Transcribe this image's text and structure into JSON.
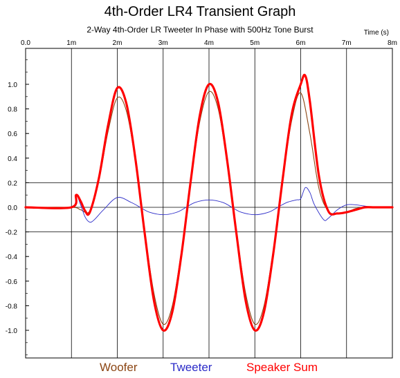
{
  "chart_data": {
    "type": "line",
    "title": "4th-Order LR4 Transient Graph",
    "subtitle": "2-Way 4th-Order LR Tweeter In Phase with 500Hz Tone Burst",
    "xlabel": "Time  (s)",
    "ylabel": "",
    "x_ticks": [
      "0.0",
      "1m",
      "2m",
      "3m",
      "4m",
      "5m",
      "6m",
      "7m",
      "8m"
    ],
    "y_ticks": [
      "1.0",
      "0.8",
      "0.6",
      "0.4",
      "0.2",
      "0.0",
      "-0.2",
      "-0.4",
      "-0.6",
      "-0.8",
      "-1.0"
    ],
    "xlim": [
      0,
      0.008
    ],
    "ylim": [
      -1.24,
      1.24
    ],
    "grid": true,
    "legend_position": "bottom",
    "series": [
      {
        "name": "Woofer",
        "color": "#8B4513",
        "x": [
          0,
          0.001,
          0.0012,
          0.0014,
          0.0016,
          0.0018,
          0.002,
          0.0022,
          0.0024,
          0.0026,
          0.0028,
          0.003,
          0.0032,
          0.0034,
          0.0036,
          0.0038,
          0.004,
          0.0042,
          0.0044,
          0.0046,
          0.0048,
          0.005,
          0.0052,
          0.0054,
          0.0056,
          0.0058,
          0.006,
          0.0062,
          0.0064,
          0.0066,
          0.0068,
          0.007,
          0.0072,
          0.0074,
          0.0076,
          0.0078,
          0.008
        ],
        "values": [
          0,
          0,
          -0.02,
          -0.03,
          0.22,
          0.62,
          0.89,
          0.78,
          0.36,
          -0.2,
          -0.7,
          -0.95,
          -0.8,
          -0.35,
          0.2,
          0.7,
          0.94,
          0.8,
          0.35,
          -0.2,
          -0.7,
          -0.95,
          -0.8,
          -0.35,
          0.2,
          0.7,
          0.93,
          0.6,
          0.15,
          -0.03,
          -0.05,
          -0.04,
          -0.01,
          0,
          0,
          0,
          0
        ]
      },
      {
        "name": "Tweeter",
        "color": "#2B2BC8",
        "x": [
          0,
          0.001,
          0.0011,
          0.0012,
          0.0013,
          0.0014,
          0.0015,
          0.0017,
          0.002,
          0.0023,
          0.0025,
          0.0027,
          0.003,
          0.0033,
          0.0035,
          0.0037,
          0.004,
          0.0043,
          0.0045,
          0.0047,
          0.005,
          0.0053,
          0.0055,
          0.0057,
          0.0059,
          0.006,
          0.0061,
          0.0062,
          0.0063,
          0.0065,
          0.0066,
          0.0068,
          0.007,
          0.0072,
          0.0074,
          0.0076,
          0.0078,
          0.008
        ],
        "values": [
          0,
          0,
          0.1,
          0.02,
          -0.08,
          -0.12,
          -0.1,
          -0.02,
          0.08,
          0.04,
          0,
          -0.04,
          -0.06,
          -0.04,
          0,
          0.04,
          0.06,
          0.04,
          0,
          -0.04,
          -0.06,
          -0.04,
          0,
          0.04,
          0.06,
          0.07,
          0.16,
          0.12,
          0.02,
          -0.1,
          -0.09,
          -0.02,
          0.02,
          0.02,
          0.01,
          0,
          0,
          0
        ]
      },
      {
        "name": "Speaker Sum",
        "color": "#FF0000",
        "x": [
          0,
          0.001,
          0.0011,
          0.0012,
          0.0013,
          0.0014,
          0.0016,
          0.0018,
          0.002,
          0.0022,
          0.0024,
          0.0026,
          0.0028,
          0.003,
          0.0032,
          0.0034,
          0.0036,
          0.0038,
          0.004,
          0.0042,
          0.0044,
          0.0046,
          0.0048,
          0.005,
          0.0052,
          0.0054,
          0.0056,
          0.0058,
          0.006,
          0.0061,
          0.0062,
          0.0064,
          0.0066,
          0.0068,
          0.007,
          0.0072,
          0.0074,
          0.0076,
          0.0078,
          0.008
        ],
        "values": [
          0,
          0,
          0.1,
          0.05,
          -0.03,
          -0.04,
          0.24,
          0.67,
          0.97,
          0.84,
          0.38,
          -0.22,
          -0.76,
          -1.0,
          -0.85,
          -0.38,
          0.21,
          0.75,
          1.0,
          0.85,
          0.37,
          -0.22,
          -0.76,
          -1.0,
          -0.85,
          -0.38,
          0.21,
          0.75,
          1.0,
          1.07,
          0.86,
          0.25,
          -0.03,
          -0.05,
          -0.04,
          -0.02,
          0,
          0,
          0,
          0
        ]
      }
    ]
  }
}
